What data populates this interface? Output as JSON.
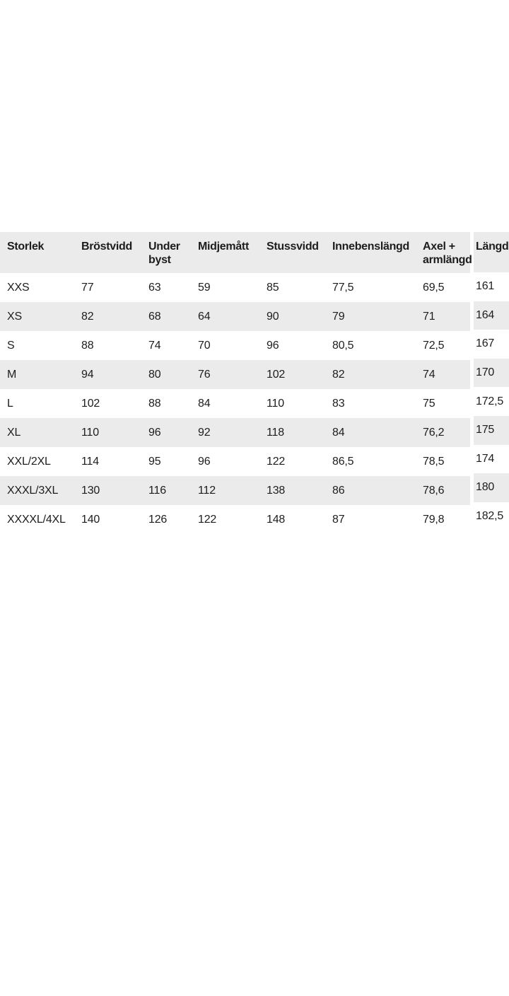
{
  "colors": {
    "background": "#ffffff",
    "stripe": "#ebebeb",
    "text": "#1d1d1d"
  },
  "size_guide_table": {
    "columns": [
      "Storlek",
      "Bröstvidd",
      "Under byst",
      "Midjemått",
      "Stussvidd",
      "Innebenslängd",
      "Axel + armlängd"
    ],
    "detached_column": "Längd",
    "rows": [
      {
        "label": "XXS",
        "values": [
          "77",
          "63",
          "59",
          "85",
          "77,5",
          "69,5"
        ],
        "langd": "161"
      },
      {
        "label": "XS",
        "values": [
          "82",
          "68",
          "64",
          "90",
          "79",
          "71"
        ],
        "langd": "164"
      },
      {
        "label": "S",
        "values": [
          "88",
          "74",
          "70",
          "96",
          "80,5",
          "72,5"
        ],
        "langd": "167"
      },
      {
        "label": "M",
        "values": [
          "94",
          "80",
          "76",
          "102",
          "82",
          "74"
        ],
        "langd": "170"
      },
      {
        "label": "L",
        "values": [
          "102",
          "88",
          "84",
          "110",
          "83",
          "75"
        ],
        "langd": "172,5"
      },
      {
        "label": "XL",
        "values": [
          "110",
          "96",
          "92",
          "118",
          "84",
          "76,2"
        ],
        "langd": "175"
      },
      {
        "label": "XXL/2XL",
        "values": [
          "114",
          "95",
          "96",
          "122",
          "86,5",
          "78,5"
        ],
        "langd": "174"
      },
      {
        "label": "XXXL/3XL",
        "values": [
          "130",
          "116",
          "112",
          "138",
          "86",
          "78,6"
        ],
        "langd": "180"
      },
      {
        "label": "XXXXL/4XL",
        "values": [
          "140",
          "126",
          "122",
          "148",
          "87",
          "79,8"
        ],
        "langd": "182,5"
      }
    ]
  }
}
